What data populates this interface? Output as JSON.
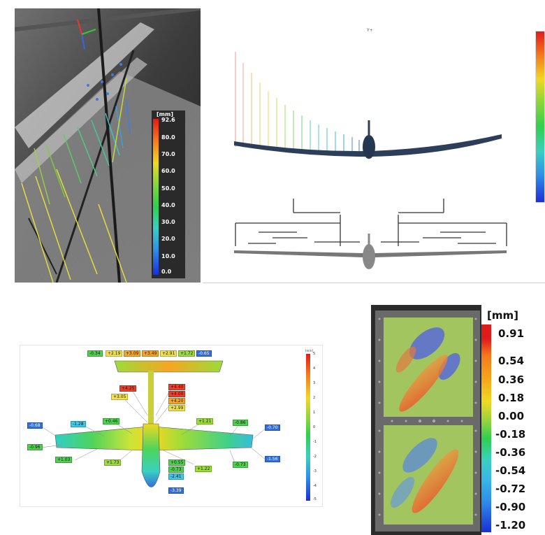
{
  "panel1": {
    "scale_title": "[mm]",
    "scale_values": [
      "92.6",
      "80.0",
      "70.0",
      "60.0",
      "50.0",
      "40.0",
      "30.0",
      "20.0",
      "10.0",
      "0.0"
    ]
  },
  "panel2": {
    "axis_label": "Y+"
  },
  "panel3": {
    "scale_title": "[mm]",
    "scale_values": [
      "5",
      "4",
      "3",
      "2",
      "1",
      "0",
      "-1",
      "-2",
      "-3",
      "-4",
      "-5"
    ],
    "labels": [
      "-0.34",
      "+2.19",
      "+3.09",
      "+3.49",
      "+2.91",
      "+1.72",
      "-0.65",
      "+4.25",
      "+3.05",
      "+4.40",
      "+4.00",
      "+4.20",
      "+2.99",
      "-0.68",
      "-1.28",
      "+0.46",
      "+1.21",
      "-0.86",
      "-0.70",
      "-0.96",
      "+1.03",
      "+1.73",
      "+0.55",
      "-0.73",
      "-2.41",
      "-3.39",
      "+1.22",
      "-0.73",
      "-1.56"
    ],
    "colors": {
      "red": "#e8402a",
      "orange": "#f5a623",
      "yellow": "#f2e24a",
      "green": "#4fd14f",
      "cyan": "#3ec9e6",
      "blue": "#2f6fe0"
    }
  },
  "panel4": {
    "scale_title": "[mm]",
    "scale_values": [
      "0.91",
      "0.54",
      "0.36",
      "0.18",
      "0.00",
      "-0.18",
      "-0.36",
      "-0.54",
      "-0.72",
      "-0.90",
      "-1.20"
    ]
  }
}
